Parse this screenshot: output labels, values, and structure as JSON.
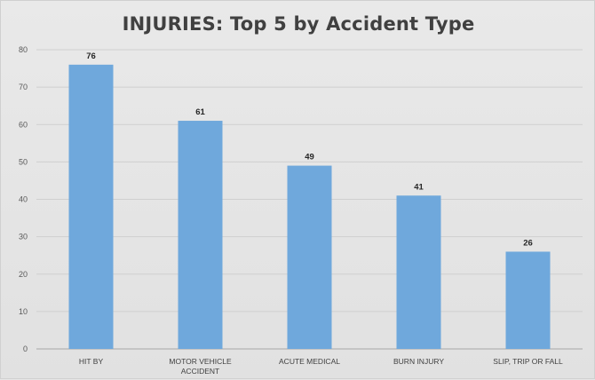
{
  "chart_data": {
    "type": "bar",
    "title": "INJURIES: Top 5 by Accident Type",
    "categories": [
      [
        "HIT BY"
      ],
      [
        "MOTOR VEHICLE",
        "ACCIDENT"
      ],
      [
        "ACUTE MEDICAL"
      ],
      [
        "BURN INJURY"
      ],
      [
        "SLIP, TRIP OR FALL"
      ]
    ],
    "values": [
      76,
      61,
      49,
      41,
      26
    ],
    "ylim": [
      0,
      80
    ],
    "yticks": [
      0,
      10,
      20,
      30,
      40,
      50,
      60,
      70,
      80
    ],
    "xlabel": "",
    "ylabel": "",
    "grid": true,
    "data_labels": true,
    "bar_color": "#6fa8dc"
  }
}
